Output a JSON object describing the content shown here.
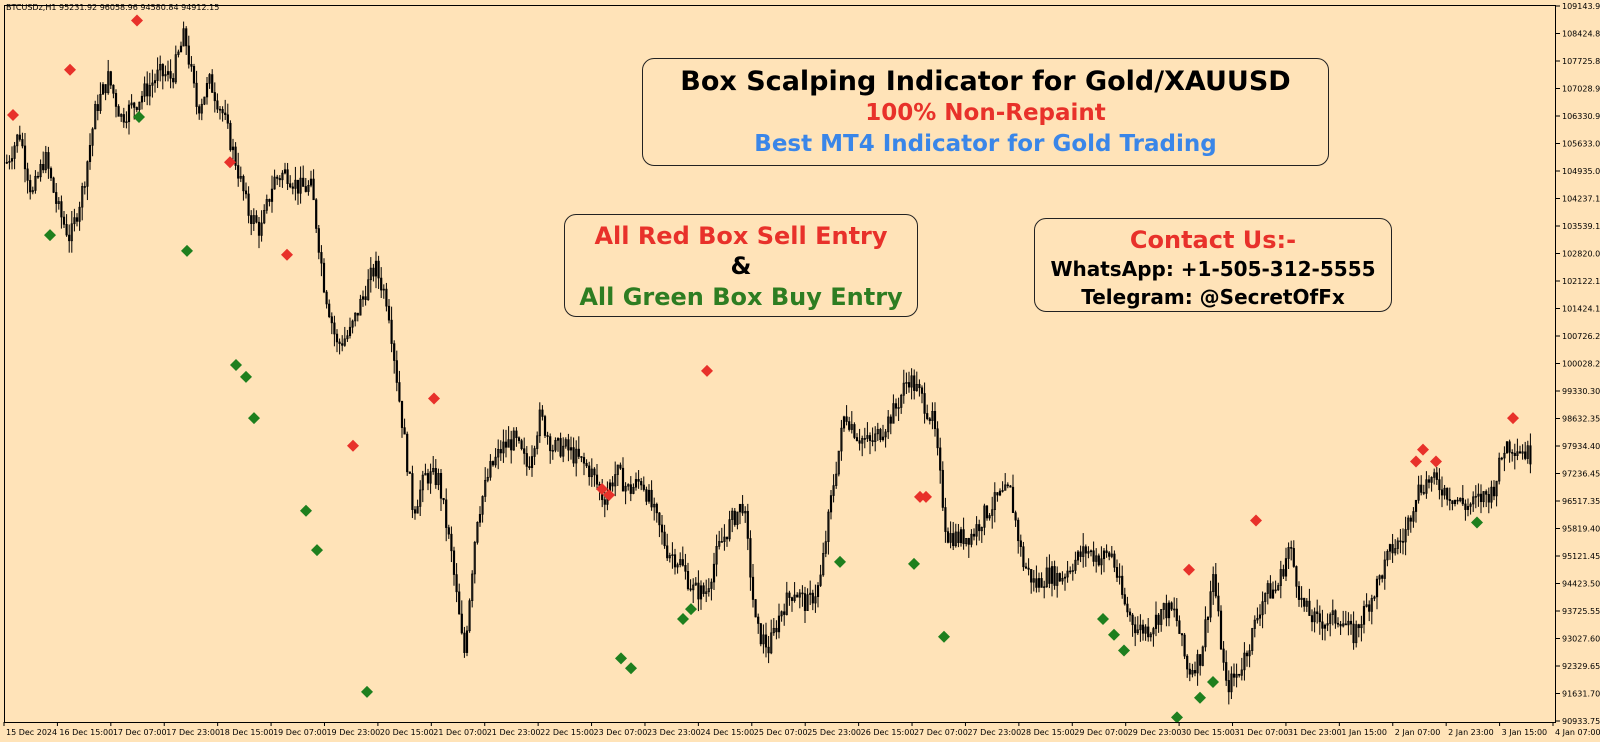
{
  "symbol_info": "BTCUSDz,H1  95231.92 96058.96 94580.84 94912.15",
  "title_box": {
    "line1": "Box Scalping Indicator for Gold/XAUUSD",
    "line2": "100% Non-Repaint",
    "line3": "Best MT4 Indicator for Gold Trading"
  },
  "entry_box": {
    "line1": "All Red Box Sell Entry",
    "line2": "&",
    "line3": "All Green Box Buy Entry"
  },
  "contact_box": {
    "line1": "Contact Us:-",
    "line2": "WhatsApp: +1-505-312-5555",
    "line3": "Telegram: @SecretOfFx"
  },
  "colors": {
    "background": "#FFE3B8",
    "sell_signal": "#E8312A",
    "buy_signal": "#1E7F1E",
    "candle": "#000000"
  },
  "chart_data": {
    "type": "candlestick",
    "y_ticks": [
      "109143.95",
      "108424.80",
      "107725.85",
      "107028.90",
      "106330.95",
      "105633.00",
      "104935.05",
      "104237.10",
      "103539.15",
      "102820.05",
      "102122.10",
      "101424.15",
      "100726.20",
      "100028.25",
      "99330.30",
      "98632.35",
      "97934.40",
      "97236.45",
      "96517.35",
      "95819.40",
      "95121.45",
      "94423.50",
      "93725.55",
      "93027.60",
      "92329.65",
      "91631.70",
      "90933.75"
    ],
    "y_range": [
      90933.75,
      109143.95
    ],
    "x_ticks": [
      "15 Dec 2024",
      "16 Dec 15:00",
      "17 Dec 07:00",
      "17 Dec 23:00",
      "18 Dec 15:00",
      "19 Dec 07:00",
      "19 Dec 23:00",
      "20 Dec 15:00",
      "21 Dec 07:00",
      "21 Dec 23:00",
      "22 Dec 15:00",
      "23 Dec 07:00",
      "23 Dec 23:00",
      "24 Dec 15:00",
      "25 Dec 07:00",
      "25 Dec 23:00",
      "26 Dec 15:00",
      "27 Dec 07:00",
      "27 Dec 23:00",
      "28 Dec 15:00",
      "29 Dec 07:00",
      "29 Dec 23:00",
      "30 Dec 15:00",
      "31 Dec 07:00",
      "31 Dec 23:00",
      "1 Jan 15:00",
      "2 Jan 07:00",
      "2 Jan 23:00",
      "3 Jan 15:00",
      "4 Jan 07:00"
    ],
    "price_path": [
      105150,
      105900,
      104300,
      105300,
      104000,
      103200,
      104500,
      106500,
      107300,
      106300,
      106600,
      107000,
      107400,
      107300,
      108400,
      106500,
      107200,
      106400,
      105200,
      103900,
      103400,
      104700,
      104900,
      104500,
      104500,
      102000,
      100500,
      100800,
      101700,
      102500,
      101600,
      98900,
      96300,
      97200,
      97100,
      95200,
      92600,
      96100,
      97300,
      97900,
      98100,
      97400,
      98700,
      97900,
      97900,
      97600,
      97300,
      96600,
      97300,
      96800,
      97100,
      96200,
      95300,
      95000,
      94300,
      94200,
      95300,
      96000,
      96500,
      93300,
      92800,
      93800,
      94300,
      93900,
      94400,
      96800,
      98800,
      98200,
      98000,
      98400,
      98900,
      99700,
      99200,
      98500,
      95700,
      95600,
      95700,
      96200,
      96600,
      96800,
      95000,
      94400,
      94700,
      94600,
      95000,
      95300,
      95100,
      95200,
      93900,
      93300,
      93300,
      93800,
      93700,
      92200,
      92600,
      94700,
      91800,
      92200,
      93100,
      94200,
      94300,
      95400,
      93900,
      93500,
      93500,
      93600,
      93100,
      93800,
      94500,
      95300,
      95600,
      96800,
      97100,
      96900,
      96600,
      96400,
      96600,
      96800,
      98000,
      97900,
      97700
    ],
    "sell_signals": [
      {
        "x": 13,
        "y": 106350
      },
      {
        "x": 70,
        "y": 107500
      },
      {
        "x": 137,
        "y": 108750
      },
      {
        "x": 230,
        "y": 105150
      },
      {
        "x": 287,
        "y": 102800
      },
      {
        "x": 353,
        "y": 97950
      },
      {
        "x": 434,
        "y": 99150
      },
      {
        "x": 707,
        "y": 99850
      },
      {
        "x": 602,
        "y": 96850
      },
      {
        "x": 609,
        "y": 96700
      },
      {
        "x": 920,
        "y": 96650
      },
      {
        "x": 926,
        "y": 96650
      },
      {
        "x": 1189,
        "y": 94800
      },
      {
        "x": 1256,
        "y": 96050
      },
      {
        "x": 1416,
        "y": 97550
      },
      {
        "x": 1423,
        "y": 97850
      },
      {
        "x": 1436,
        "y": 97550
      },
      {
        "x": 1513,
        "y": 98650
      }
    ],
    "buy_signals": [
      {
        "x": 50,
        "y": 103300
      },
      {
        "x": 139,
        "y": 106300
      },
      {
        "x": 187,
        "y": 102900
      },
      {
        "x": 236,
        "y": 100000
      },
      {
        "x": 246,
        "y": 99700
      },
      {
        "x": 254,
        "y": 98650
      },
      {
        "x": 306,
        "y": 96300
      },
      {
        "x": 317,
        "y": 95300
      },
      {
        "x": 367,
        "y": 91700
      },
      {
        "x": 621,
        "y": 92550
      },
      {
        "x": 631,
        "y": 92300
      },
      {
        "x": 683,
        "y": 93550
      },
      {
        "x": 691,
        "y": 93800
      },
      {
        "x": 840,
        "y": 95000
      },
      {
        "x": 914,
        "y": 94950
      },
      {
        "x": 944,
        "y": 93100
      },
      {
        "x": 1103,
        "y": 93550
      },
      {
        "x": 1114,
        "y": 93150
      },
      {
        "x": 1124,
        "y": 92750
      },
      {
        "x": 1177,
        "y": 91050
      },
      {
        "x": 1200,
        "y": 91550
      },
      {
        "x": 1213,
        "y": 91950
      },
      {
        "x": 1477,
        "y": 96000
      }
    ]
  }
}
